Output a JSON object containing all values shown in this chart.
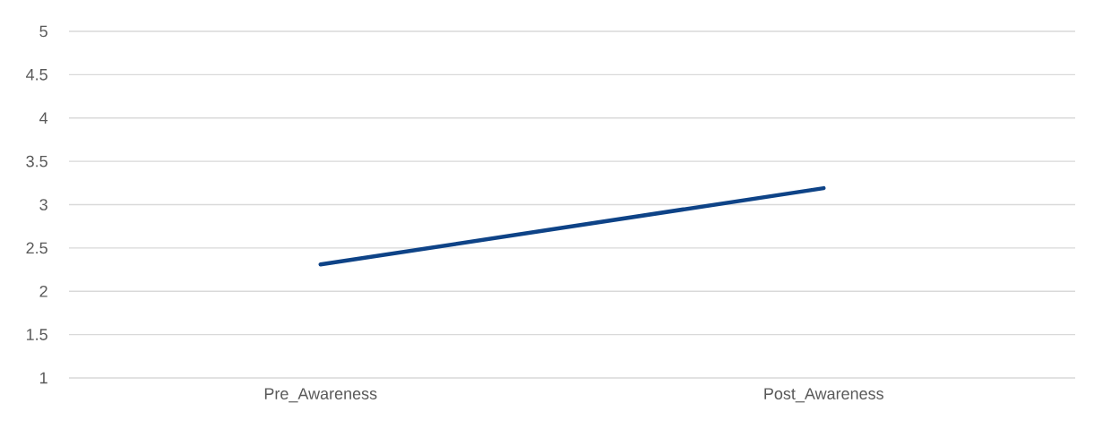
{
  "chart_data": {
    "type": "line",
    "categories": [
      "Pre_Awareness",
      "Post_Awareness"
    ],
    "series": [
      {
        "color": "#0e4387",
        "values": [
          2.31,
          3.19
        ]
      }
    ],
    "ylim": [
      1,
      5
    ],
    "yticks": [
      1,
      1.5,
      2,
      2.5,
      3,
      3.5,
      4,
      4.5,
      5
    ],
    "grid": "y",
    "marker": "none",
    "line_style": "solid"
  }
}
